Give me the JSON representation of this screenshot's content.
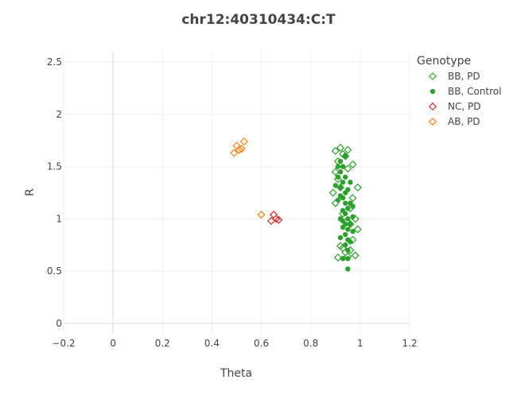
{
  "chart_data": {
    "type": "scatter",
    "title": "chr12:40310434:C:T",
    "xlabel": "Theta",
    "ylabel": "R",
    "xlim": [
      -0.2,
      1.2
    ],
    "ylim": [
      -0.1,
      2.6
    ],
    "xticks": [
      "−0.2",
      "0",
      "0.2",
      "0.4",
      "0.6",
      "0.8",
      "1",
      "1.2"
    ],
    "xtick_values": [
      -0.2,
      0,
      0.2,
      0.4,
      0.6,
      0.8,
      1,
      1.2
    ],
    "yticks": [
      "0",
      "0.5",
      "1",
      "1.5",
      "2",
      "2.5"
    ],
    "ytick_values": [
      0,
      0.5,
      1,
      1.5,
      2,
      2.5
    ],
    "grid": true,
    "legend": {
      "title": "Genotype",
      "placement": "top-right"
    },
    "series": [
      {
        "name": "BB, PD",
        "marker": "diamond-open",
        "color": "#2ca02c",
        "points": [
          [
            0.9,
            1.65
          ],
          [
            0.92,
            1.68
          ],
          [
            0.95,
            1.66
          ],
          [
            0.94,
            1.6
          ],
          [
            0.93,
            1.62
          ],
          [
            0.91,
            1.55
          ],
          [
            0.9,
            1.45
          ],
          [
            0.91,
            1.38
          ],
          [
            0.92,
            1.3
          ],
          [
            0.89,
            1.25
          ],
          [
            0.99,
            1.3
          ],
          [
            0.97,
            1.2
          ],
          [
            0.96,
            1.1
          ],
          [
            0.98,
            1.0
          ],
          [
            0.99,
            0.9
          ],
          [
            0.97,
            0.8
          ],
          [
            0.96,
            0.7
          ],
          [
            0.93,
            0.72
          ],
          [
            0.92,
            0.74
          ],
          [
            0.94,
            0.68
          ],
          [
            0.98,
            0.65
          ],
          [
            0.91,
            0.63
          ],
          [
            0.95,
            0.64
          ],
          [
            0.93,
            1.05
          ],
          [
            0.95,
            1.48
          ],
          [
            0.96,
            0.95
          ],
          [
            0.9,
            1.15
          ],
          [
            0.97,
            1.52
          ]
        ]
      },
      {
        "name": "BB, Control",
        "marker": "circle",
        "color": "#2ca02c",
        "points": [
          [
            0.92,
            1.55
          ],
          [
            0.93,
            1.5
          ],
          [
            0.92,
            1.45
          ],
          [
            0.91,
            1.4
          ],
          [
            0.93,
            1.35
          ],
          [
            0.92,
            1.3
          ],
          [
            0.94,
            1.25
          ],
          [
            0.93,
            1.2
          ],
          [
            0.94,
            1.15
          ],
          [
            0.95,
            1.1
          ],
          [
            0.94,
            1.05
          ],
          [
            0.95,
            1.0
          ],
          [
            0.96,
            0.95
          ],
          [
            0.95,
            0.9
          ],
          [
            0.94,
            0.85
          ],
          [
            0.95,
            0.8
          ],
          [
            0.94,
            0.75
          ],
          [
            0.95,
            0.7
          ],
          [
            0.93,
            0.62
          ],
          [
            0.95,
            0.62
          ],
          [
            0.95,
            0.52
          ],
          [
            0.91,
            1.5
          ],
          [
            0.94,
            1.4
          ],
          [
            0.9,
            1.32
          ],
          [
            0.95,
            1.28
          ],
          [
            0.92,
            1.22
          ],
          [
            0.96,
            1.15
          ],
          [
            0.93,
            1.08
          ],
          [
            0.97,
            1.02
          ],
          [
            0.93,
            0.98
          ],
          [
            0.97,
            0.88
          ],
          [
            0.93,
            0.92
          ],
          [
            0.96,
            0.78
          ],
          [
            0.92,
            0.82
          ],
          [
            0.96,
            1.35
          ],
          [
            0.91,
            1.18
          ],
          [
            0.97,
            1.12
          ],
          [
            0.92,
            1.0
          ],
          [
            0.94,
            0.95
          ],
          [
            0.94,
            1.6
          ]
        ]
      },
      {
        "name": "NC, PD",
        "marker": "diamond-open",
        "color": "#d62728",
        "points": [
          [
            0.65,
            1.04
          ],
          [
            0.64,
            0.98
          ],
          [
            0.66,
            1.0
          ],
          [
            0.67,
            0.99
          ]
        ]
      },
      {
        "name": "AB, PD",
        "marker": "diamond-open",
        "color": "#ff7f0e",
        "points": [
          [
            0.53,
            1.74
          ],
          [
            0.5,
            1.7
          ],
          [
            0.51,
            1.66
          ],
          [
            0.52,
            1.67
          ],
          [
            0.49,
            1.63
          ],
          [
            0.6,
            1.04
          ]
        ]
      }
    ]
  }
}
